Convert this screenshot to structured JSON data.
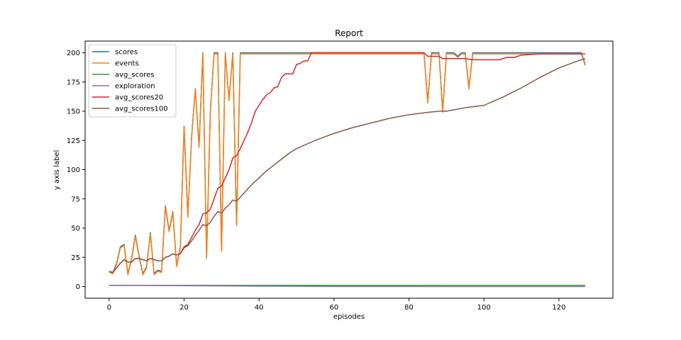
{
  "chart_data": {
    "type": "line",
    "title": "Report",
    "xlabel": "episodes",
    "ylabel": "y axis label",
    "xlim": [
      -6.4,
      134.4
    ],
    "ylim": [
      -10,
      210
    ],
    "xticks": [
      0,
      20,
      40,
      60,
      80,
      100,
      120
    ],
    "yticks": [
      0,
      25,
      50,
      75,
      100,
      125,
      150,
      175,
      200
    ],
    "legend_position": "top-left",
    "series": [
      {
        "name": "scores",
        "color": "#1f77b4",
        "x": [
          0,
          1,
          2,
          3,
          4,
          5,
          6,
          7,
          8,
          9,
          10,
          11,
          12,
          13,
          14,
          15,
          16,
          17,
          18,
          19,
          20,
          21,
          22,
          23,
          24,
          25,
          26,
          27,
          28,
          29,
          30,
          31,
          32,
          33,
          34,
          35,
          84,
          85,
          86,
          88,
          89,
          90,
          92,
          93,
          94,
          95,
          96,
          97,
          126,
          127
        ],
        "y": [
          13,
          12,
          20,
          34,
          36,
          11,
          24,
          44,
          26,
          11,
          17,
          46,
          11,
          14,
          13,
          69,
          48,
          64,
          18,
          34,
          137,
          60,
          128,
          169,
          120,
          200,
          25,
          150,
          200,
          200,
          31,
          200,
          160,
          200,
          53,
          200,
          200,
          158,
          200,
          200,
          150,
          200,
          200,
          197,
          200,
          200,
          170,
          200,
          200,
          190
        ]
      },
      {
        "name": "events",
        "color": "#ff7f0e",
        "x": [
          0,
          1,
          2,
          3,
          4,
          5,
          6,
          7,
          8,
          9,
          10,
          11,
          12,
          13,
          14,
          15,
          16,
          17,
          18,
          19,
          20,
          21,
          22,
          23,
          24,
          25,
          26,
          27,
          28,
          29,
          30,
          31,
          32,
          33,
          34,
          35,
          84,
          85,
          86,
          88,
          89,
          90,
          92,
          93,
          94,
          95,
          96,
          97,
          126,
          127
        ],
        "y": [
          12,
          11,
          19,
          33,
          35,
          10,
          23,
          43,
          25,
          10,
          16,
          45,
          10,
          13,
          12,
          68,
          47,
          63,
          17,
          33,
          136,
          59,
          127,
          168,
          119,
          199,
          24,
          149,
          199,
          199,
          30,
          199,
          159,
          199,
          52,
          199,
          199,
          157,
          199,
          199,
          149,
          199,
          199,
          196,
          199,
          199,
          169,
          199,
          199,
          189
        ]
      },
      {
        "name": "avg_scores",
        "color": "#2ca02c",
        "x": [
          0,
          10,
          20,
          40,
          60,
          80,
          100,
          120,
          127
        ],
        "y": [
          1,
          1,
          1,
          1,
          1,
          1,
          1,
          1,
          1
        ]
      },
      {
        "name": "exploration",
        "color": "#9467bd",
        "x": [
          0,
          10,
          20,
          30,
          40,
          50,
          60,
          80,
          100,
          127
        ],
        "y": [
          1,
          0.9,
          0.7,
          0.5,
          0.3,
          0.2,
          0.1,
          0.05,
          0.02,
          0.01
        ]
      },
      {
        "name": "avg_scores20",
        "color": "#d62728",
        "x": [
          0,
          1,
          2,
          3,
          4,
          5,
          6,
          7,
          8,
          9,
          10,
          11,
          12,
          13,
          14,
          15,
          16,
          17,
          18,
          19,
          20,
          21,
          22,
          23,
          24,
          25,
          26,
          27,
          28,
          29,
          30,
          31,
          32,
          33,
          34,
          35,
          36,
          37,
          38,
          39,
          40,
          41,
          42,
          43,
          44,
          45,
          46,
          47,
          48,
          49,
          50,
          51,
          52,
          53,
          54,
          55,
          84,
          85,
          86,
          88,
          89,
          90,
          95,
          97,
          98,
          100,
          102,
          104,
          106,
          108,
          110,
          115,
          126,
          127
        ],
        "y": [
          13,
          12,
          16,
          20,
          23,
          21,
          21,
          24,
          24,
          23,
          22,
          24,
          23,
          22,
          22,
          25,
          26,
          28,
          27,
          28,
          34,
          36,
          42,
          48,
          53,
          62,
          63,
          66,
          75,
          84,
          86,
          93,
          100,
          110,
          112,
          118,
          125,
          132,
          140,
          150,
          155,
          160,
          164,
          166,
          170,
          171,
          179,
          182,
          182,
          182,
          190,
          191,
          193,
          193,
          200,
          200,
          200,
          197,
          197,
          197,
          195,
          195,
          195,
          194,
          194,
          194,
          194,
          194,
          196,
          196,
          198,
          199,
          199,
          199
        ]
      },
      {
        "name": "avg_scores100",
        "color": "#8c564b",
        "x": [
          0,
          1,
          2,
          3,
          4,
          5,
          6,
          7,
          8,
          9,
          10,
          11,
          12,
          13,
          14,
          15,
          16,
          17,
          18,
          19,
          20,
          21,
          22,
          23,
          24,
          25,
          26,
          27,
          28,
          29,
          30,
          31,
          32,
          33,
          34,
          36,
          38,
          40,
          42,
          44,
          46,
          48,
          50,
          55,
          60,
          65,
          70,
          75,
          80,
          85,
          88,
          90,
          95,
          100,
          105,
          110,
          115,
          120,
          125,
          127
        ],
        "y": [
          13,
          12,
          16,
          20,
          23,
          21,
          21,
          24,
          24,
          23,
          22,
          24,
          23,
          22,
          22,
          25,
          26,
          28,
          27,
          28,
          33,
          35,
          39,
          44,
          48,
          53,
          52,
          55,
          60,
          64,
          63,
          67,
          70,
          74,
          73,
          80,
          87,
          93,
          99,
          104,
          109,
          114,
          118,
          125,
          131,
          136,
          140,
          144,
          147,
          149,
          150,
          150,
          153,
          155,
          162,
          170,
          179,
          187,
          193,
          195
        ]
      }
    ]
  }
}
